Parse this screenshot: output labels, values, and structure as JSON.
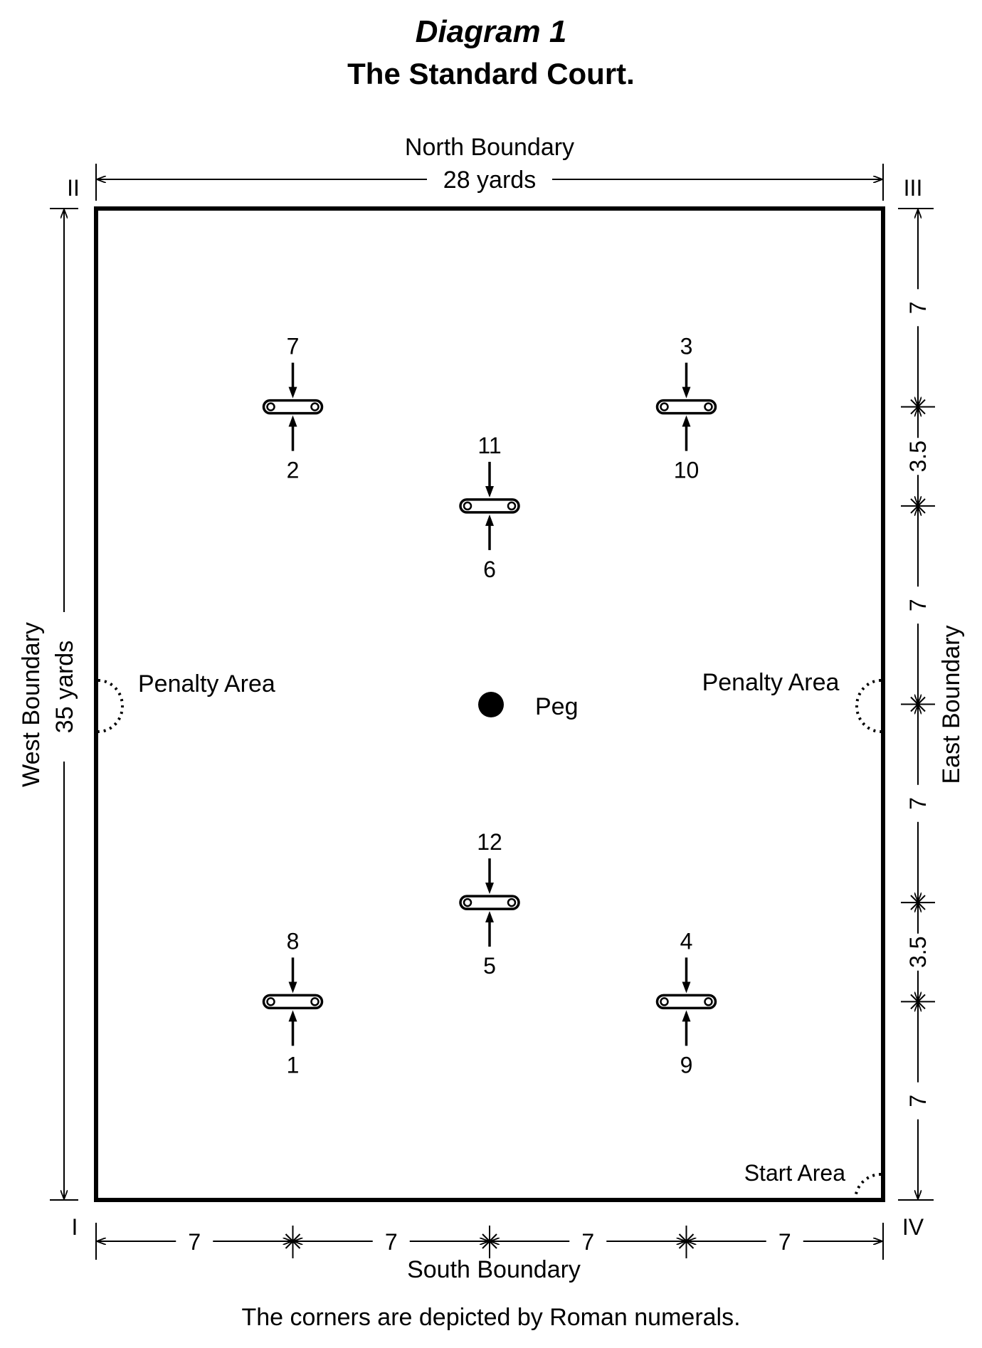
{
  "title": "Diagram 1",
  "subtitle": "The Standard Court.",
  "caption": "The corners are depicted by Roman numerals.",
  "boundaries": {
    "north": "North Boundary",
    "south": "South Boundary",
    "west": "West Boundary",
    "east": "East Boundary"
  },
  "dimensions": {
    "width": "28 yards",
    "length": "35 yards",
    "south_segments": [
      "7",
      "7",
      "7",
      "7"
    ],
    "east_segments": [
      "7",
      "3.5",
      "7",
      "7",
      "3.5",
      "7"
    ]
  },
  "corners": {
    "southwest": "I",
    "northwest": "II",
    "northeast": "III",
    "southeast": "IV"
  },
  "areas": {
    "penalty_west": "Penalty Area",
    "penalty_east": "Penalty Area",
    "start": "Start Area",
    "peg": "Peg"
  },
  "hoops": [
    {
      "id": "nw",
      "above": "7",
      "below": "2"
    },
    {
      "id": "ne",
      "above": "3",
      "below": "10"
    },
    {
      "id": "cn",
      "above": "11",
      "below": "6"
    },
    {
      "id": "cs",
      "above": "12",
      "below": "5"
    },
    {
      "id": "sw",
      "above": "8",
      "below": "1"
    },
    {
      "id": "se",
      "above": "4",
      "below": "9"
    }
  ]
}
